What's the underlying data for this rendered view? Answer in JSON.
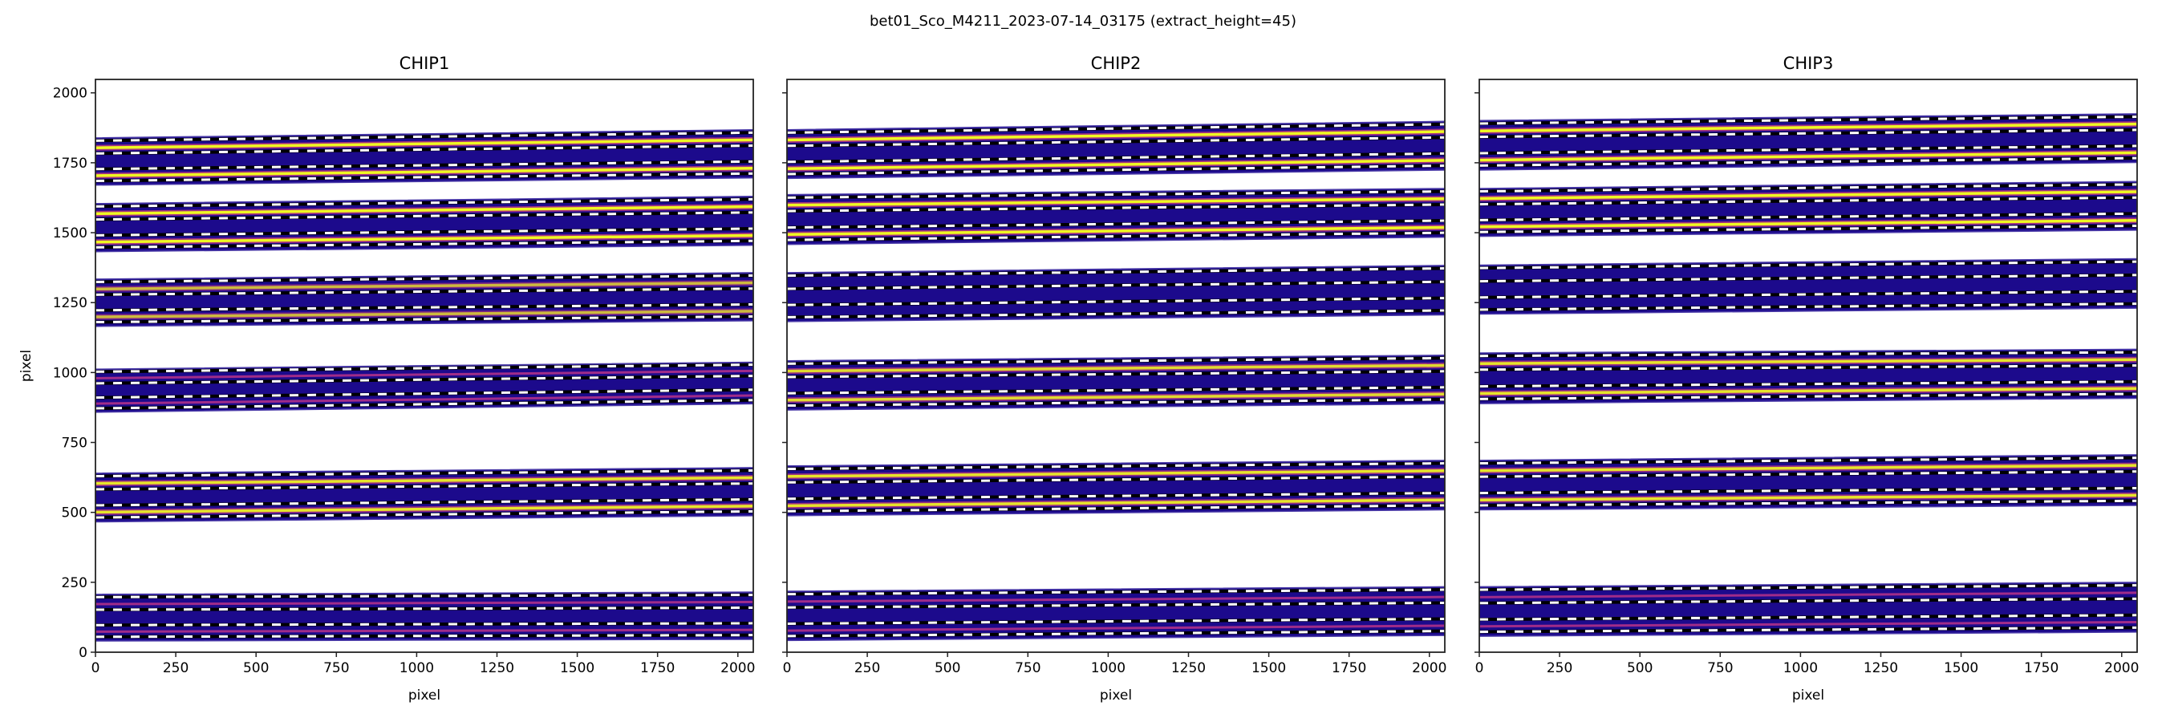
{
  "suptitle": "bet01_Sco_M4211_2023-07-14_03175  (extract_height=45)",
  "colors": {
    "band": "#1c0a8c",
    "band_edge": "#4a3aa8",
    "trace_core": "#f0f921",
    "trace_halo": "#e0457b",
    "faint_trace": "#b83289",
    "axis": "#222222"
  },
  "chart_data": [
    {
      "type": "heatmap",
      "title": "CHIP1",
      "xlabel": "pixel",
      "ylabel": "pixel",
      "show_ytick_labels": true,
      "xlim": [
        0,
        2048
      ],
      "ylim": [
        0,
        2048
      ],
      "xticks": [
        0,
        250,
        500,
        750,
        1000,
        1250,
        1500,
        1750,
        2000
      ],
      "yticks": [
        0,
        250,
        500,
        750,
        1000,
        1250,
        1500,
        1750,
        2000
      ],
      "orders": [
        {
          "bottom_left": 1670,
          "top_left": 1839,
          "bottom_right": 1696,
          "top_right": 1868,
          "intensity": 1.0
        },
        {
          "bottom_left": 1432,
          "top_left": 1604,
          "bottom_right": 1455,
          "top_right": 1630,
          "intensity": 1.0
        },
        {
          "bottom_left": 1165,
          "top_left": 1334,
          "bottom_right": 1185,
          "top_right": 1357,
          "intensity": 0.7
        },
        {
          "bottom_left": 858,
          "top_left": 1012,
          "bottom_right": 888,
          "top_right": 1037,
          "intensity": 0.35
        },
        {
          "bottom_left": 466,
          "top_left": 640,
          "bottom_right": 488,
          "top_right": 660,
          "intensity": 0.9
        },
        {
          "bottom_left": 40,
          "top_left": 207,
          "bottom_right": 46,
          "top_right": 215,
          "intensity": 0.35
        }
      ]
    },
    {
      "type": "heatmap",
      "title": "CHIP2",
      "xlabel": "pixel",
      "ylabel": "",
      "show_ytick_labels": false,
      "xlim": [
        0,
        2048
      ],
      "ylim": [
        0,
        2048
      ],
      "xticks": [
        0,
        250,
        500,
        750,
        1000,
        1250,
        1500,
        1750,
        2000
      ],
      "yticks": [
        0,
        250,
        500,
        750,
        1000,
        1250,
        1500,
        1750,
        2000
      ],
      "orders": [
        {
          "bottom_left": 1694,
          "top_left": 1868,
          "bottom_right": 1724,
          "top_right": 1898,
          "intensity": 1.0
        },
        {
          "bottom_left": 1458,
          "top_left": 1636,
          "bottom_right": 1484,
          "top_right": 1658,
          "intensity": 1.0
        },
        {
          "bottom_left": 1182,
          "top_left": 1357,
          "bottom_right": 1206,
          "top_right": 1383,
          "intensity": 0.0
        },
        {
          "bottom_left": 866,
          "top_left": 1042,
          "bottom_right": 888,
          "top_right": 1062,
          "intensity": 0.85
        },
        {
          "bottom_left": 488,
          "top_left": 666,
          "bottom_right": 509,
          "top_right": 686,
          "intensity": 0.9
        },
        {
          "bottom_left": 42,
          "top_left": 218,
          "bottom_right": 60,
          "top_right": 234,
          "intensity": 0.35
        }
      ]
    },
    {
      "type": "heatmap",
      "title": "CHIP3",
      "xlabel": "pixel",
      "ylabel": "",
      "show_ytick_labels": false,
      "xlim": [
        0,
        2048
      ],
      "ylim": [
        0,
        2048
      ],
      "xticks": [
        0,
        250,
        500,
        750,
        1000,
        1250,
        1500,
        1750,
        2000
      ],
      "yticks": [
        0,
        250,
        500,
        750,
        1000,
        1250,
        1500,
        1750,
        2000
      ],
      "orders": [
        {
          "bottom_left": 1724,
          "top_left": 1901,
          "bottom_right": 1751,
          "top_right": 1925,
          "intensity": 1.0
        },
        {
          "bottom_left": 1487,
          "top_left": 1658,
          "bottom_right": 1509,
          "top_right": 1683,
          "intensity": 1.0
        },
        {
          "bottom_left": 1209,
          "top_left": 1384,
          "bottom_right": 1230,
          "top_right": 1407,
          "intensity": 0.0
        },
        {
          "bottom_left": 889,
          "top_left": 1070,
          "bottom_right": 908,
          "top_right": 1083,
          "intensity": 0.9
        },
        {
          "bottom_left": 509,
          "top_left": 686,
          "bottom_right": 525,
          "top_right": 706,
          "intensity": 0.9
        },
        {
          "bottom_left": 57,
          "top_left": 234,
          "bottom_right": 72,
          "top_right": 250,
          "intensity": 0.35
        }
      ]
    }
  ]
}
